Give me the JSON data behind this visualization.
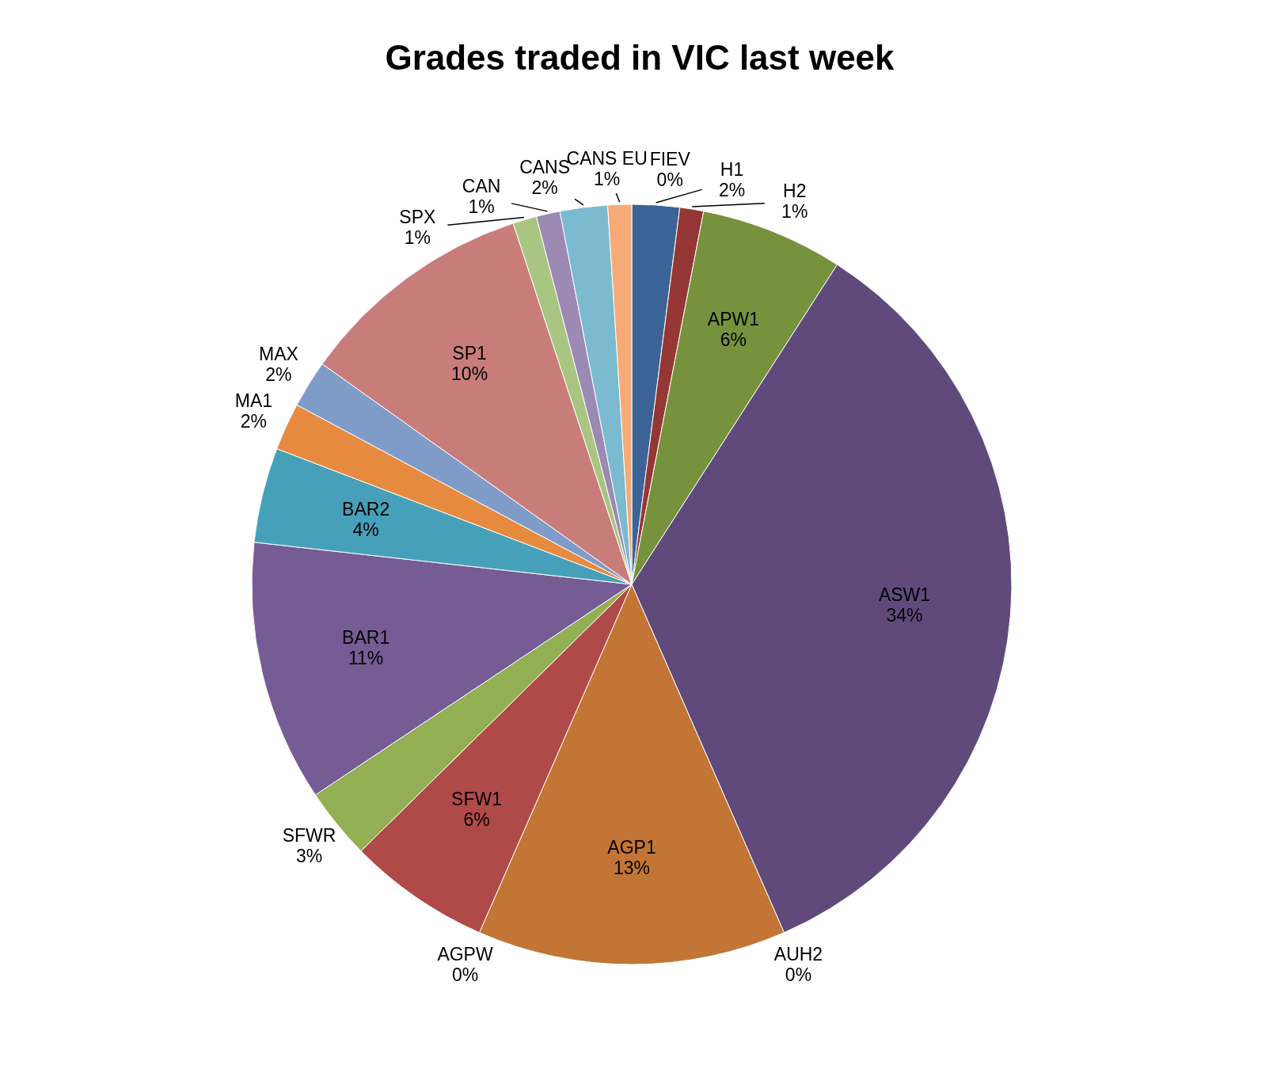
{
  "chart_data": {
    "type": "pie",
    "title": "Grades traded in VIC last week",
    "categories": [
      "H1",
      "H2",
      "APW1",
      "ASW1",
      "AUH2",
      "AGP1",
      "AGPW",
      "SFW1",
      "SFWR",
      "BAR1",
      "BAR2",
      "MA1",
      "MAX",
      "SP1",
      "SPX",
      "CAN",
      "CANS",
      "CANS EU",
      "FIEV"
    ],
    "values": [
      2,
      1,
      6,
      34,
      0,
      13,
      0,
      6,
      3,
      11,
      4,
      2,
      2,
      10,
      1,
      1,
      2,
      1,
      0
    ],
    "value_labels": [
      "2%",
      "1%",
      "6%",
      "34%",
      "0%",
      "13%",
      "0%",
      "6%",
      "3%",
      "11%",
      "4%",
      "2%",
      "2%",
      "10%",
      "1%",
      "1%",
      "2%",
      "1%",
      "0%"
    ],
    "colors": [
      "#3c6496",
      "#953735",
      "#76923c",
      "#604a7b",
      null,
      "#c27535",
      null,
      "#b04a48",
      "#93af54",
      "#765c94",
      "#47a0b9",
      "#e68a40",
      "#7f9cc8",
      "#c97d7b",
      "#a9c582",
      "#9c89b4",
      "#7cbad0",
      "#f7aa77",
      null
    ]
  }
}
